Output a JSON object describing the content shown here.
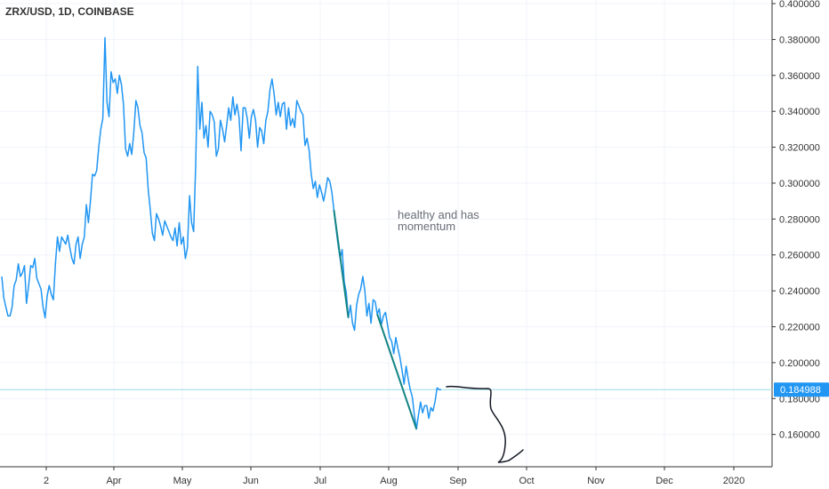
{
  "chart_data": {
    "type": "line",
    "title": "ZRX/USD, 1D, COINBASE",
    "xlabel": "",
    "ylabel": "",
    "x_ticks": [
      "2",
      "Apr",
      "May",
      "Jun",
      "Jul",
      "Aug",
      "Sep",
      "Oct",
      "Nov",
      "Dec",
      "2020"
    ],
    "y_ticks": [
      "0.400000",
      "0.380000",
      "0.360000",
      "0.340000",
      "0.320000",
      "0.300000",
      "0.280000",
      "0.260000",
      "0.240000",
      "0.220000",
      "0.200000",
      "0.180000",
      "0.160000"
    ],
    "ylim": [
      0.142,
      0.402
    ],
    "grid": true,
    "series": [
      {
        "values": [
          0.248,
          0.236,
          0.231,
          0.226,
          0.226,
          0.231,
          0.243,
          0.246,
          0.255,
          0.248,
          0.25,
          0.254,
          0.233,
          0.243,
          0.254,
          0.253,
          0.258,
          0.247,
          0.244,
          0.241,
          0.231,
          0.225,
          0.237,
          0.243,
          0.238,
          0.235,
          0.255,
          0.27,
          0.262,
          0.27,
          0.268,
          0.266,
          0.271,
          0.264,
          0.258,
          0.255,
          0.266,
          0.27,
          0.258,
          0.266,
          0.27,
          0.288,
          0.278,
          0.29,
          0.305,
          0.304,
          0.307,
          0.32,
          0.33,
          0.336,
          0.381,
          0.345,
          0.337,
          0.362,
          0.356,
          0.358,
          0.35,
          0.36,
          0.355,
          0.344,
          0.319,
          0.315,
          0.322,
          0.316,
          0.328,
          0.346,
          0.342,
          0.332,
          0.328,
          0.317,
          0.314,
          0.296,
          0.285,
          0.272,
          0.268,
          0.283,
          0.28,
          0.276,
          0.271,
          0.279,
          0.276,
          0.273,
          0.27,
          0.268,
          0.275,
          0.265,
          0.278,
          0.266,
          0.27,
          0.258,
          0.264,
          0.293,
          0.278,
          0.273,
          0.31,
          0.365,
          0.33,
          0.345,
          0.325,
          0.332,
          0.32,
          0.34,
          0.338,
          0.334,
          0.315,
          0.319,
          0.335,
          0.33,
          0.323,
          0.332,
          0.342,
          0.335,
          0.348,
          0.338,
          0.344,
          0.337,
          0.318,
          0.342,
          0.342,
          0.336,
          0.325,
          0.337,
          0.341,
          0.335,
          0.32,
          0.331,
          0.329,
          0.322,
          0.335,
          0.34,
          0.352,
          0.358,
          0.35,
          0.338,
          0.345,
          0.337,
          0.344,
          0.345,
          0.33,
          0.342,
          0.332,
          0.336,
          0.331,
          0.346,
          0.343,
          0.34,
          0.338,
          0.321,
          0.325,
          0.318,
          0.305,
          0.297,
          0.301,
          0.292,
          0.299,
          0.295,
          0.29,
          0.296,
          0.303,
          0.301,
          0.295,
          0.285,
          0.275,
          0.266,
          0.258,
          0.263,
          0.245,
          0.239,
          0.225,
          0.232,
          0.222,
          0.218,
          0.232,
          0.238,
          0.241,
          0.248,
          0.24,
          0.226,
          0.233,
          0.222,
          0.235,
          0.234,
          0.227,
          0.23,
          0.221,
          0.226,
          0.228,
          0.221,
          0.214,
          0.212,
          0.205,
          0.214,
          0.208,
          0.203,
          0.196,
          0.188,
          0.198,
          0.191,
          0.185,
          0.181,
          0.171,
          0.163,
          0.171,
          0.178,
          0.172,
          0.176,
          0.176,
          0.169,
          0.175,
          0.173,
          0.178,
          0.186,
          0.185,
          0.185
        ]
      }
    ],
    "current_price": 0.184988,
    "current_price_label": "0.184988",
    "annotation": [
      "healthy and has",
      "momentum"
    ],
    "colors": {
      "line": "#2196f3",
      "trend": "#138484",
      "price_line": "#9adbe8",
      "price_tag": "#2196f3",
      "drawing": "#131722",
      "grid": "#f0f3fa",
      "axis": "#333333"
    }
  }
}
